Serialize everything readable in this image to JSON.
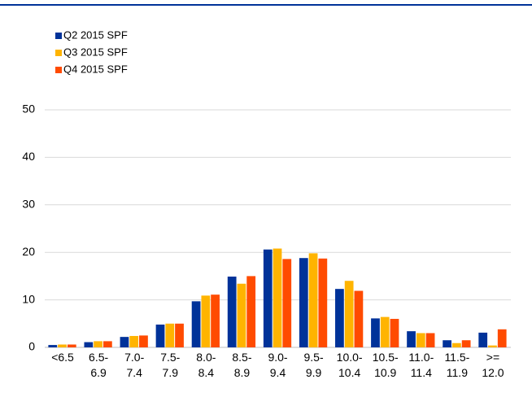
{
  "chart_data": {
    "type": "bar",
    "categories": [
      "<6.5",
      "6.5-\n6.9",
      "7.0-\n7.4",
      "7.5-\n7.9",
      "8.0-\n8.4",
      "8.5-\n8.9",
      "9.0-\n9.4",
      "9.5-\n9.9",
      "10.0-\n10.4",
      "10.5-\n10.9",
      "11.0-\n11.4",
      "11.5-\n11.9",
      ">=\n12.0"
    ],
    "series": [
      {
        "name": "Q2 2015 SPF",
        "color": "#003299",
        "values": [
          0.5,
          1.1,
          2.2,
          4.8,
          9.7,
          14.9,
          20.6,
          18.8,
          12.3,
          6.1,
          3.4,
          1.5,
          3.1
        ]
      },
      {
        "name": "Q3 2015 SPF",
        "color": "#ffb400",
        "values": [
          0.6,
          1.3,
          2.4,
          5.0,
          10.9,
          13.4,
          20.8,
          19.8,
          14.0,
          6.4,
          3.0,
          0.9,
          0.4
        ]
      },
      {
        "name": "Q4 2015 SPF",
        "color": "#ff4b00",
        "values": [
          0.6,
          1.3,
          2.5,
          5.0,
          11.1,
          15.0,
          18.6,
          18.7,
          11.9,
          6.0,
          3.0,
          1.5,
          3.8
        ]
      }
    ],
    "ylim": [
      0,
      50
    ],
    "yticks": [
      0,
      10,
      20,
      30,
      40,
      50
    ],
    "grid": true,
    "legend": "top-left"
  }
}
